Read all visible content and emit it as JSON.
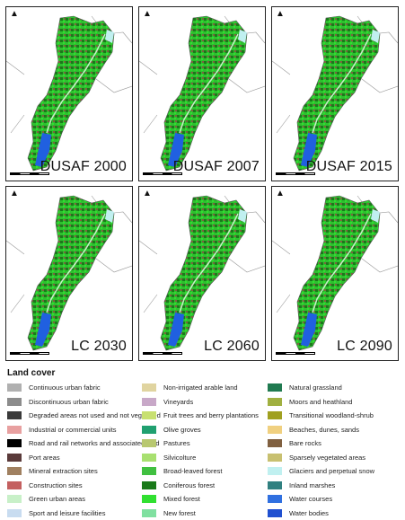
{
  "panels": [
    {
      "label": "DUSAF 2000"
    },
    {
      "label": "DUSAF 2007"
    },
    {
      "label": "DUSAF 2015"
    },
    {
      "label": "LC 2030"
    },
    {
      "label": "LC 2060"
    },
    {
      "label": "LC 2090"
    }
  ],
  "legend": {
    "title": "Land cover",
    "columns": [
      [
        {
          "label": "Continuous urban fabric",
          "color": "#b0b0b0"
        },
        {
          "label": "Discontinuous urban fabric",
          "color": "#8c8c8c"
        },
        {
          "label": "Degraded areas not used and not vegetated",
          "color": "#3a3a3a"
        },
        {
          "label": "Industrial or commercial units",
          "color": "#e8a0a0"
        },
        {
          "label": "Road and rail networks and associated land",
          "color": "#000000"
        },
        {
          "label": "Port areas",
          "color": "#5a3a3a"
        },
        {
          "label": "Mineral extraction sites",
          "color": "#a08060"
        },
        {
          "label": "Construction sites",
          "color": "#c46060"
        },
        {
          "label": "Green urban areas",
          "color": "#c8f0c8"
        },
        {
          "label": "Sport and leisure facilities",
          "color": "#c8dcf0"
        }
      ],
      [
        {
          "label": "Non-irrigated arable land",
          "color": "#e0d4a0"
        },
        {
          "label": "Vineyards",
          "color": "#c8a8c8"
        },
        {
          "label": "Fruit trees and berry plantations",
          "color": "#c8e070"
        },
        {
          "label": "Olive groves",
          "color": "#20a070"
        },
        {
          "label": "Pastures",
          "color": "#b8c870"
        },
        {
          "label": "Silvicolture",
          "color": "#a8e070"
        },
        {
          "label": "Broad-leaved forest",
          "color": "#40c040"
        },
        {
          "label": "Coniferous forest",
          "color": "#1a7a1a"
        },
        {
          "label": "Mixed forest",
          "color": "#30e030"
        },
        {
          "label": "New forest",
          "color": "#80e0a0"
        }
      ],
      [
        {
          "label": "Natural grassland",
          "color": "#207a50"
        },
        {
          "label": "Moors and heathland",
          "color": "#a0b040"
        },
        {
          "label": "Transitional woodland-shrub",
          "color": "#a0a020"
        },
        {
          "label": "Beaches, dunes, sands",
          "color": "#f0d080"
        },
        {
          "label": "Bare rocks",
          "color": "#806040"
        },
        {
          "label": "Sparsely vegetated areas",
          "color": "#c8c070"
        },
        {
          "label": "Glaciers and perpetual snow",
          "color": "#c0f0f0"
        },
        {
          "label": "Inland marshes",
          "color": "#308080"
        },
        {
          "label": "Water courses",
          "color": "#3070e0"
        },
        {
          "label": "Water bodies",
          "color": "#2050d0"
        }
      ]
    ]
  },
  "north_symbol": "north-arrow"
}
